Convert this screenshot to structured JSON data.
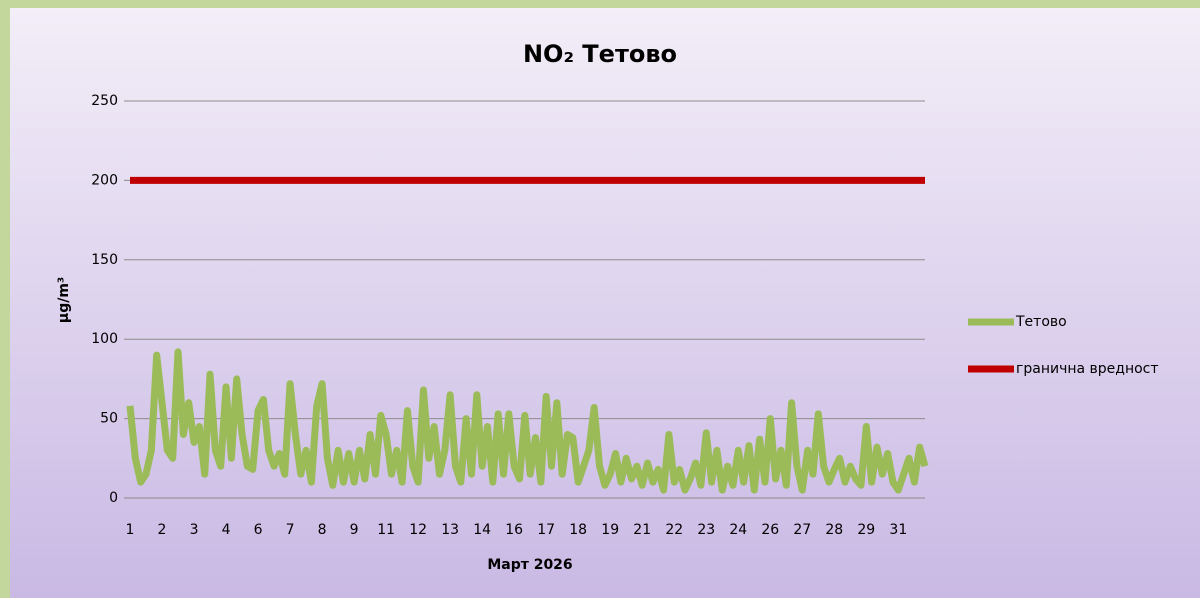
{
  "chart_data": {
    "type": "line",
    "title": "NO₂ Тетово",
    "x_label": "Март 2026",
    "y_label": "µg/m³",
    "categories": [
      "1",
      null,
      null,
      null,
      null,
      null,
      "2",
      null,
      null,
      null,
      null,
      null,
      "3",
      null,
      null,
      null,
      null,
      null,
      "4",
      null,
      null,
      null,
      null,
      null,
      "6",
      null,
      null,
      null,
      null,
      null,
      "7",
      null,
      null,
      null,
      null,
      null,
      "8",
      null,
      null,
      null,
      null,
      null,
      "9",
      null,
      null,
      null,
      null,
      null,
      "11",
      null,
      null,
      null,
      null,
      null,
      "12",
      null,
      null,
      null,
      null,
      null,
      "13",
      null,
      null,
      null,
      null,
      null,
      "14",
      null,
      null,
      null,
      null,
      null,
      "16",
      null,
      null,
      null,
      null,
      null,
      "17",
      null,
      null,
      null,
      null,
      null,
      "18",
      null,
      null,
      null,
      null,
      null,
      "19",
      null,
      null,
      null,
      null,
      null,
      "21",
      null,
      null,
      null,
      null,
      null,
      "22",
      null,
      null,
      null,
      null,
      null,
      "23",
      null,
      null,
      null,
      null,
      null,
      "24",
      null,
      null,
      null,
      null,
      null,
      "26",
      null,
      null,
      null,
      null,
      null,
      "27",
      null,
      null,
      null,
      null,
      null,
      "28",
      null,
      null,
      null,
      null,
      null,
      "29",
      null,
      null,
      null,
      null,
      null,
      "31",
      null,
      null,
      null,
      null,
      null
    ],
    "series": [
      {
        "name": "Тетово",
        "color": "#9bbb59",
        "values": [
          58,
          25,
          10,
          15,
          30,
          90,
          60,
          30,
          25,
          92,
          40,
          60,
          35,
          45,
          15,
          78,
          30,
          20,
          70,
          25,
          75,
          40,
          20,
          18,
          55,
          62,
          30,
          20,
          28,
          15,
          72,
          40,
          15,
          30,
          10,
          58,
          72,
          25,
          8,
          30,
          10,
          28,
          10,
          30,
          12,
          40,
          15,
          52,
          40,
          15,
          30,
          10,
          55,
          20,
          10,
          68,
          25,
          45,
          15,
          30,
          65,
          20,
          10,
          50,
          15,
          65,
          20,
          45,
          10,
          53,
          15,
          53,
          20,
          12,
          52,
          15,
          38,
          10,
          64,
          20,
          60,
          15,
          40,
          38,
          10,
          20,
          30,
          57,
          20,
          8,
          15,
          28,
          10,
          25,
          12,
          20,
          8,
          22,
          10,
          18,
          5,
          40,
          10,
          18,
          5,
          12,
          22,
          8,
          41,
          10,
          30,
          5,
          20,
          8,
          30,
          10,
          33,
          5,
          37,
          10,
          50,
          12,
          30,
          8,
          60,
          20,
          5,
          30,
          15,
          53,
          20,
          10,
          18,
          25,
          10,
          20,
          12,
          8,
          45,
          10,
          32,
          15,
          28,
          10,
          5,
          15,
          25,
          10,
          32,
          20
        ]
      },
      {
        "name": "гранична вредност",
        "color": "#c00000",
        "values": [
          200,
          200,
          200,
          200,
          200,
          200,
          200,
          200,
          200,
          200,
          200,
          200,
          200,
          200,
          200,
          200,
          200,
          200,
          200,
          200,
          200,
          200,
          200,
          200,
          200,
          200,
          200,
          200,
          200,
          200,
          200,
          200,
          200,
          200,
          200,
          200,
          200,
          200,
          200,
          200,
          200,
          200,
          200,
          200,
          200,
          200,
          200,
          200,
          200,
          200,
          200,
          200,
          200,
          200,
          200,
          200,
          200,
          200,
          200,
          200,
          200,
          200,
          200,
          200,
          200,
          200,
          200,
          200,
          200,
          200,
          200,
          200,
          200,
          200,
          200,
          200,
          200,
          200,
          200,
          200,
          200,
          200,
          200,
          200,
          200,
          200,
          200,
          200,
          200,
          200,
          200,
          200,
          200,
          200,
          200,
          200,
          200,
          200,
          200,
          200,
          200,
          200,
          200,
          200,
          200,
          200,
          200,
          200,
          200,
          200,
          200,
          200,
          200,
          200,
          200,
          200,
          200,
          200,
          200,
          200,
          200,
          200,
          200,
          200,
          200,
          200,
          200,
          200,
          200,
          200,
          200,
          200,
          200,
          200,
          200,
          200,
          200,
          200,
          200,
          200,
          200,
          200,
          200,
          200,
          200,
          200,
          200,
          200,
          200,
          200
        ]
      }
    ],
    "ylim": [
      0,
      250
    ],
    "yticks": [
      0,
      50,
      100,
      150,
      200,
      250
    ],
    "grid": true,
    "legend": "right"
  }
}
